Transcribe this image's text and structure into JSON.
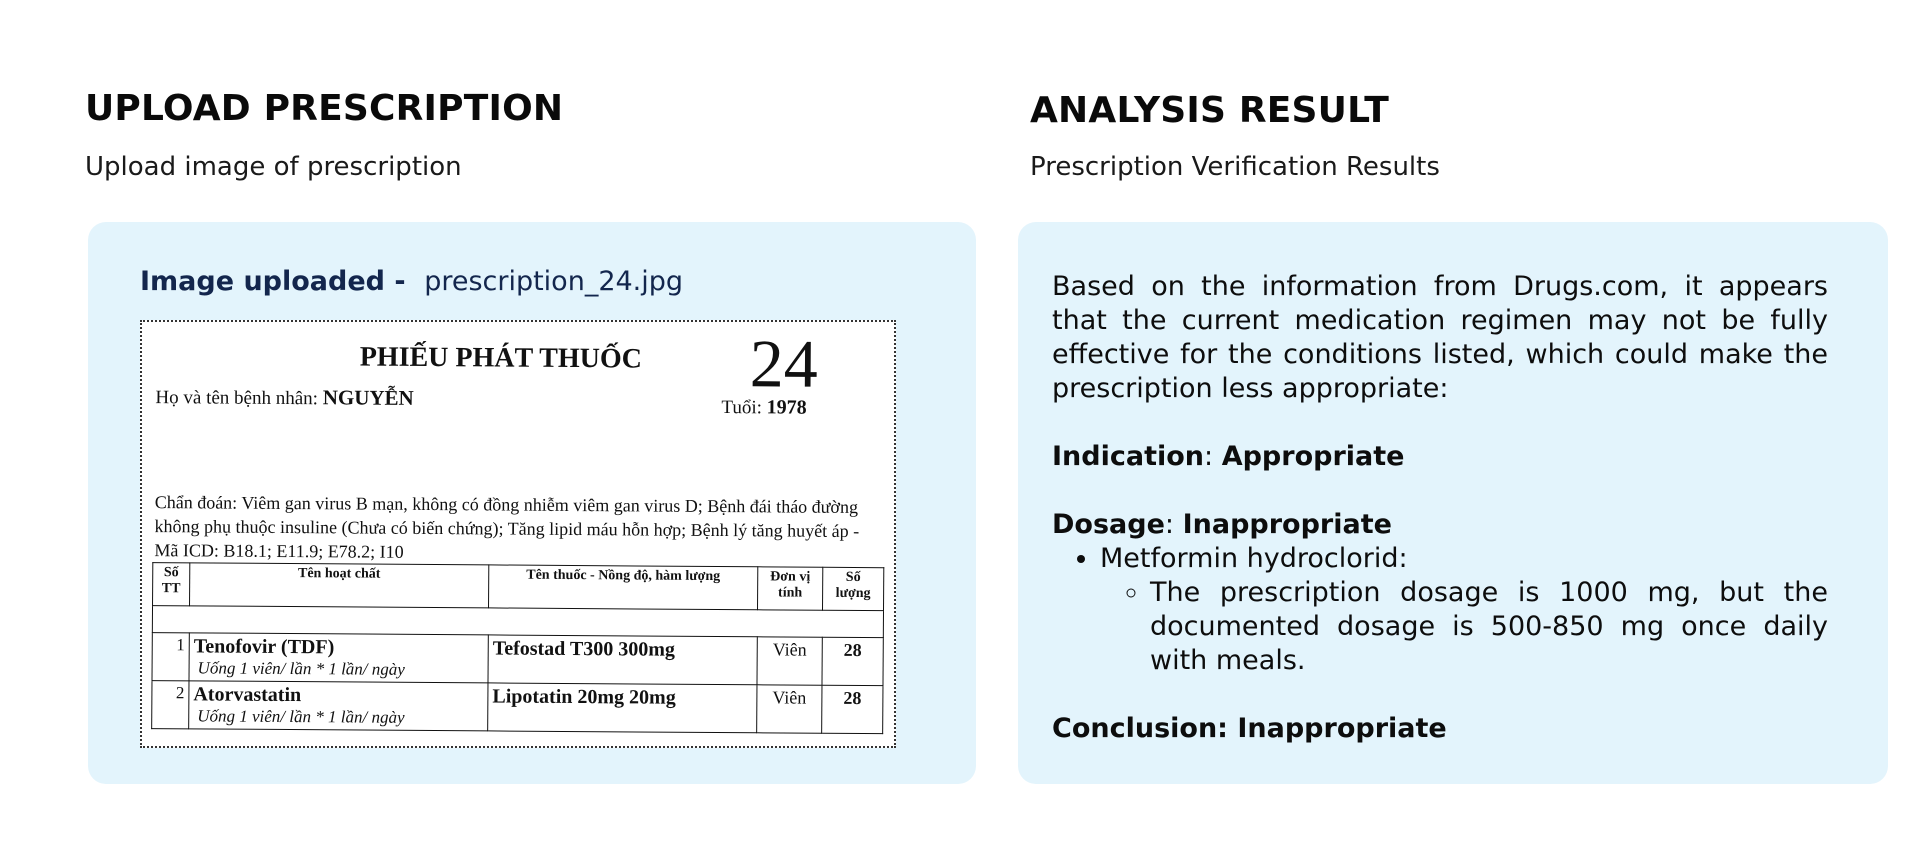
{
  "upload": {
    "title": "UPLOAD PRESCRIPTION",
    "subtitle": "Upload image of prescription",
    "uploaded_label": "Image uploaded -",
    "file_name": "prescription_24.jpg",
    "prescription": {
      "title": "PHIẾU PHÁT THUỐC",
      "number": "24",
      "patient_label": "Họ và tên bệnh nhân:",
      "patient_name": "NGUYỄN",
      "age_label": "Tuổi:",
      "age_value": "1978",
      "diagnosis": "Chẩn đoán: Viêm gan virus B mạn, không có đồng nhiễm viêm gan virus D; Bệnh đái tháo đường không phụ thuộc insuline (Chưa có biến chứng); Tăng lipid máu hỗn hợp; Bệnh lý tăng huyết áp - Mã ICD: B18.1; E11.9; E78.2; I10",
      "columns": [
        "Số TT",
        "Tên hoạt chất",
        "Tên thuốc - Nồng độ, hàm lượng",
        "Đơn vị tính",
        "Số lượng"
      ],
      "rows": [
        {
          "no": "1",
          "ingredient": "Tenofovir (TDF)",
          "dose": "Uống 1 viên/ lần * 1 lần/ ngày",
          "drug": "Tefostad T300 300mg",
          "unit": "Viên",
          "qty": "28"
        },
        {
          "no": "2",
          "ingredient": "Atorvastatin",
          "dose": "Uống 1 viên/ lần * 1 lần/ ngày",
          "drug": "Lipotatin 20mg 20mg",
          "unit": "Viên",
          "qty": "28"
        }
      ]
    }
  },
  "analysis": {
    "title": "ANALYSIS RESULT",
    "subtitle": "Prescription Verification Results",
    "intro": "Based on the information from Drugs.com, it appears that the current medication regimen may not be fully effective for the conditions listed, which could make the prescription less appropriate:",
    "indication_label": "Indication",
    "indication_value": "Appropriate",
    "dosage_label": "Dosage",
    "dosage_value": "Inappropriate",
    "drug_item": "Metformin hydroclorid:",
    "drug_detail": "The prescription dosage is 1000 mg, but the documented dosage is 500-850 mg once daily with meals.",
    "conclusion": "Conclusion: Inappropriate"
  },
  "colors": {
    "panel_bg": "#e3f4fc",
    "label_navy": "#13264d"
  }
}
